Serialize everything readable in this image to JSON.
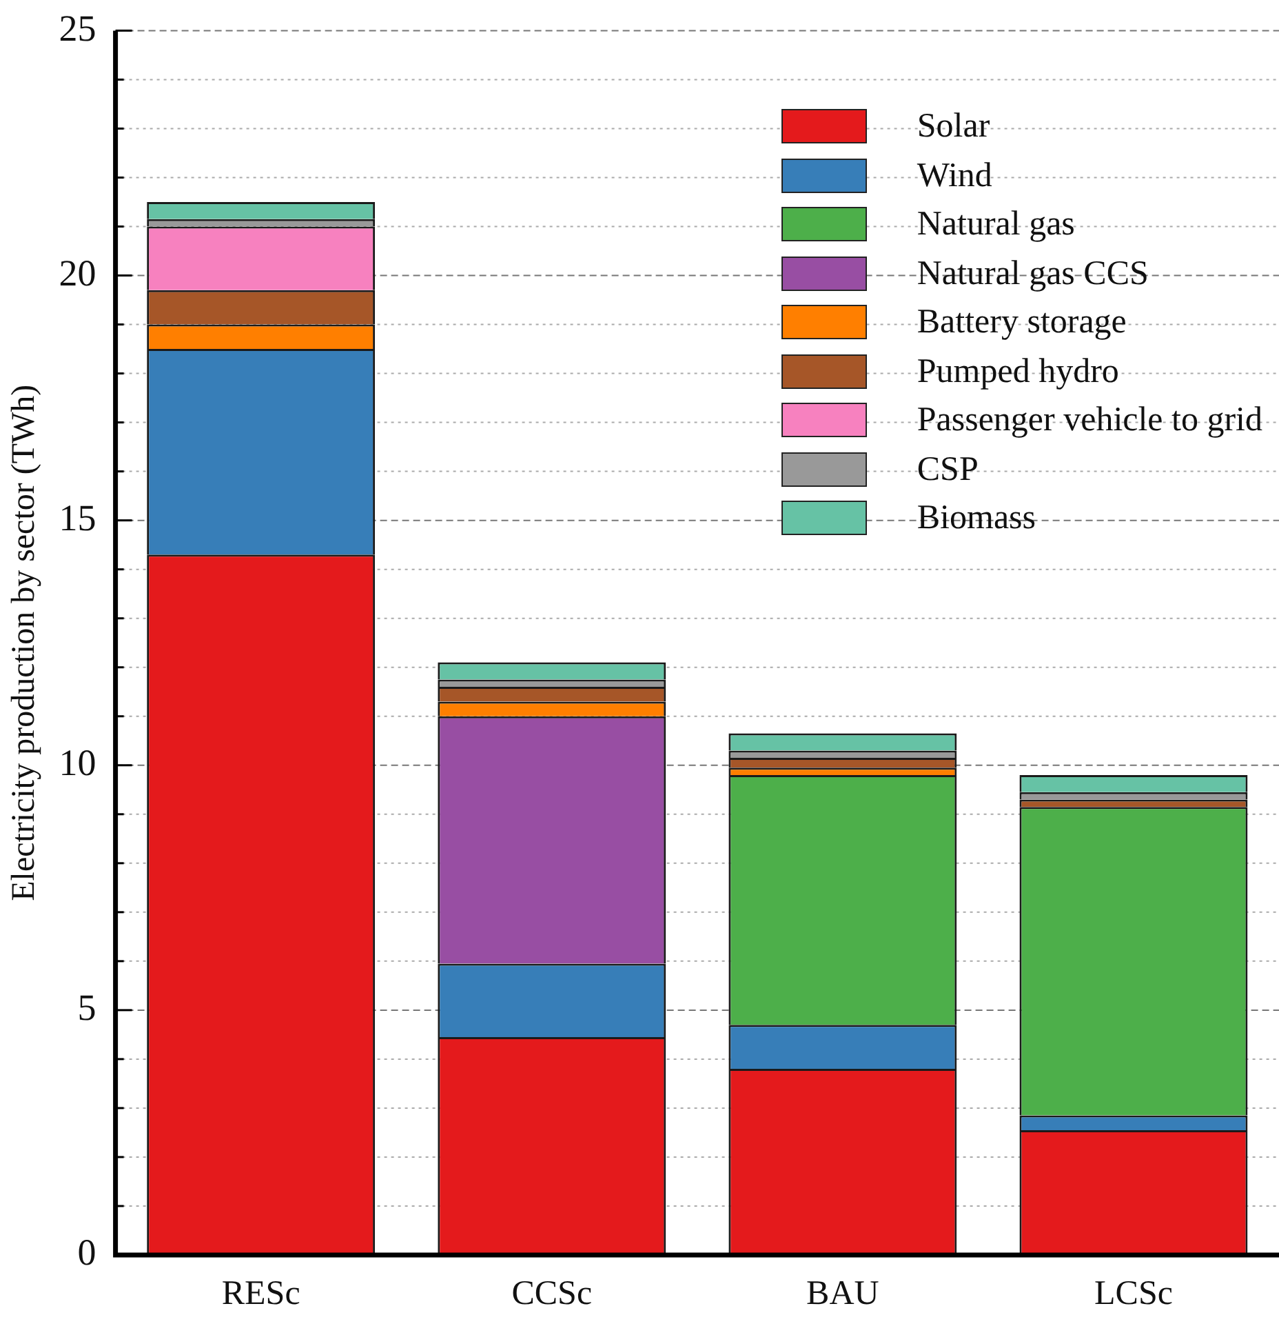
{
  "chart_data": {
    "type": "bar",
    "stacked": true,
    "ylabel": "Electricity production by sector (TWh)",
    "categories": [
      "RESc",
      "CCSc",
      "BAU",
      "LCSc"
    ],
    "series": [
      {
        "name": "Solar",
        "color": "#e41a1c",
        "values": [
          14.3,
          4.45,
          3.8,
          2.55
        ]
      },
      {
        "name": "Wind",
        "color": "#377eb8",
        "values": [
          4.2,
          1.5,
          0.9,
          0.3
        ]
      },
      {
        "name": "Natural gas",
        "color": "#4daf4a",
        "values": [
          0,
          0,
          5.1,
          6.3
        ]
      },
      {
        "name": "Natural gas CCS",
        "color": "#984ea3",
        "values": [
          0,
          5.05,
          0,
          0
        ]
      },
      {
        "name": "Battery storage",
        "color": "#ff7f00",
        "values": [
          0.5,
          0.3,
          0.15,
          0
        ]
      },
      {
        "name": "Pumped hydro",
        "color": "#a65628",
        "values": [
          0.7,
          0.3,
          0.2,
          0.15
        ]
      },
      {
        "name": "Passenger vehicle to grid",
        "color": "#f781bf",
        "values": [
          1.3,
          0,
          0,
          0
        ]
      },
      {
        "name": "CSP",
        "color": "#999999",
        "values": [
          0.15,
          0.15,
          0.15,
          0.15
        ]
      },
      {
        "name": "Biomass",
        "color": "#66c2a5",
        "values": [
          0.35,
          0.35,
          0.35,
          0.35
        ]
      }
    ],
    "ylim": [
      0,
      25
    ],
    "yticks": [
      0,
      {
        "value": 1,
        "label": null
      },
      {
        "value": 2,
        "label": null
      },
      {
        "value": 3,
        "label": null
      },
      {
        "value": 4,
        "label": null
      },
      5,
      {
        "value": 6,
        "label": null
      },
      {
        "value": 7,
        "label": null
      },
      {
        "value": 8,
        "label": null
      },
      {
        "value": 9,
        "label": null
      },
      10,
      {
        "value": 11,
        "label": null
      },
      {
        "value": 12,
        "label": null
      },
      {
        "value": 13,
        "label": null
      },
      {
        "value": 14,
        "label": null
      },
      15,
      {
        "value": 16,
        "label": null
      },
      {
        "value": 17,
        "label": null
      },
      {
        "value": 18,
        "label": null
      },
      {
        "value": 19,
        "label": null
      },
      20,
      {
        "value": 21,
        "label": null
      },
      {
        "value": 22,
        "label": null
      },
      {
        "value": 23,
        "label": null
      },
      {
        "value": 24,
        "label": null
      },
      25
    ],
    "grid": "y",
    "legend": "top right"
  }
}
